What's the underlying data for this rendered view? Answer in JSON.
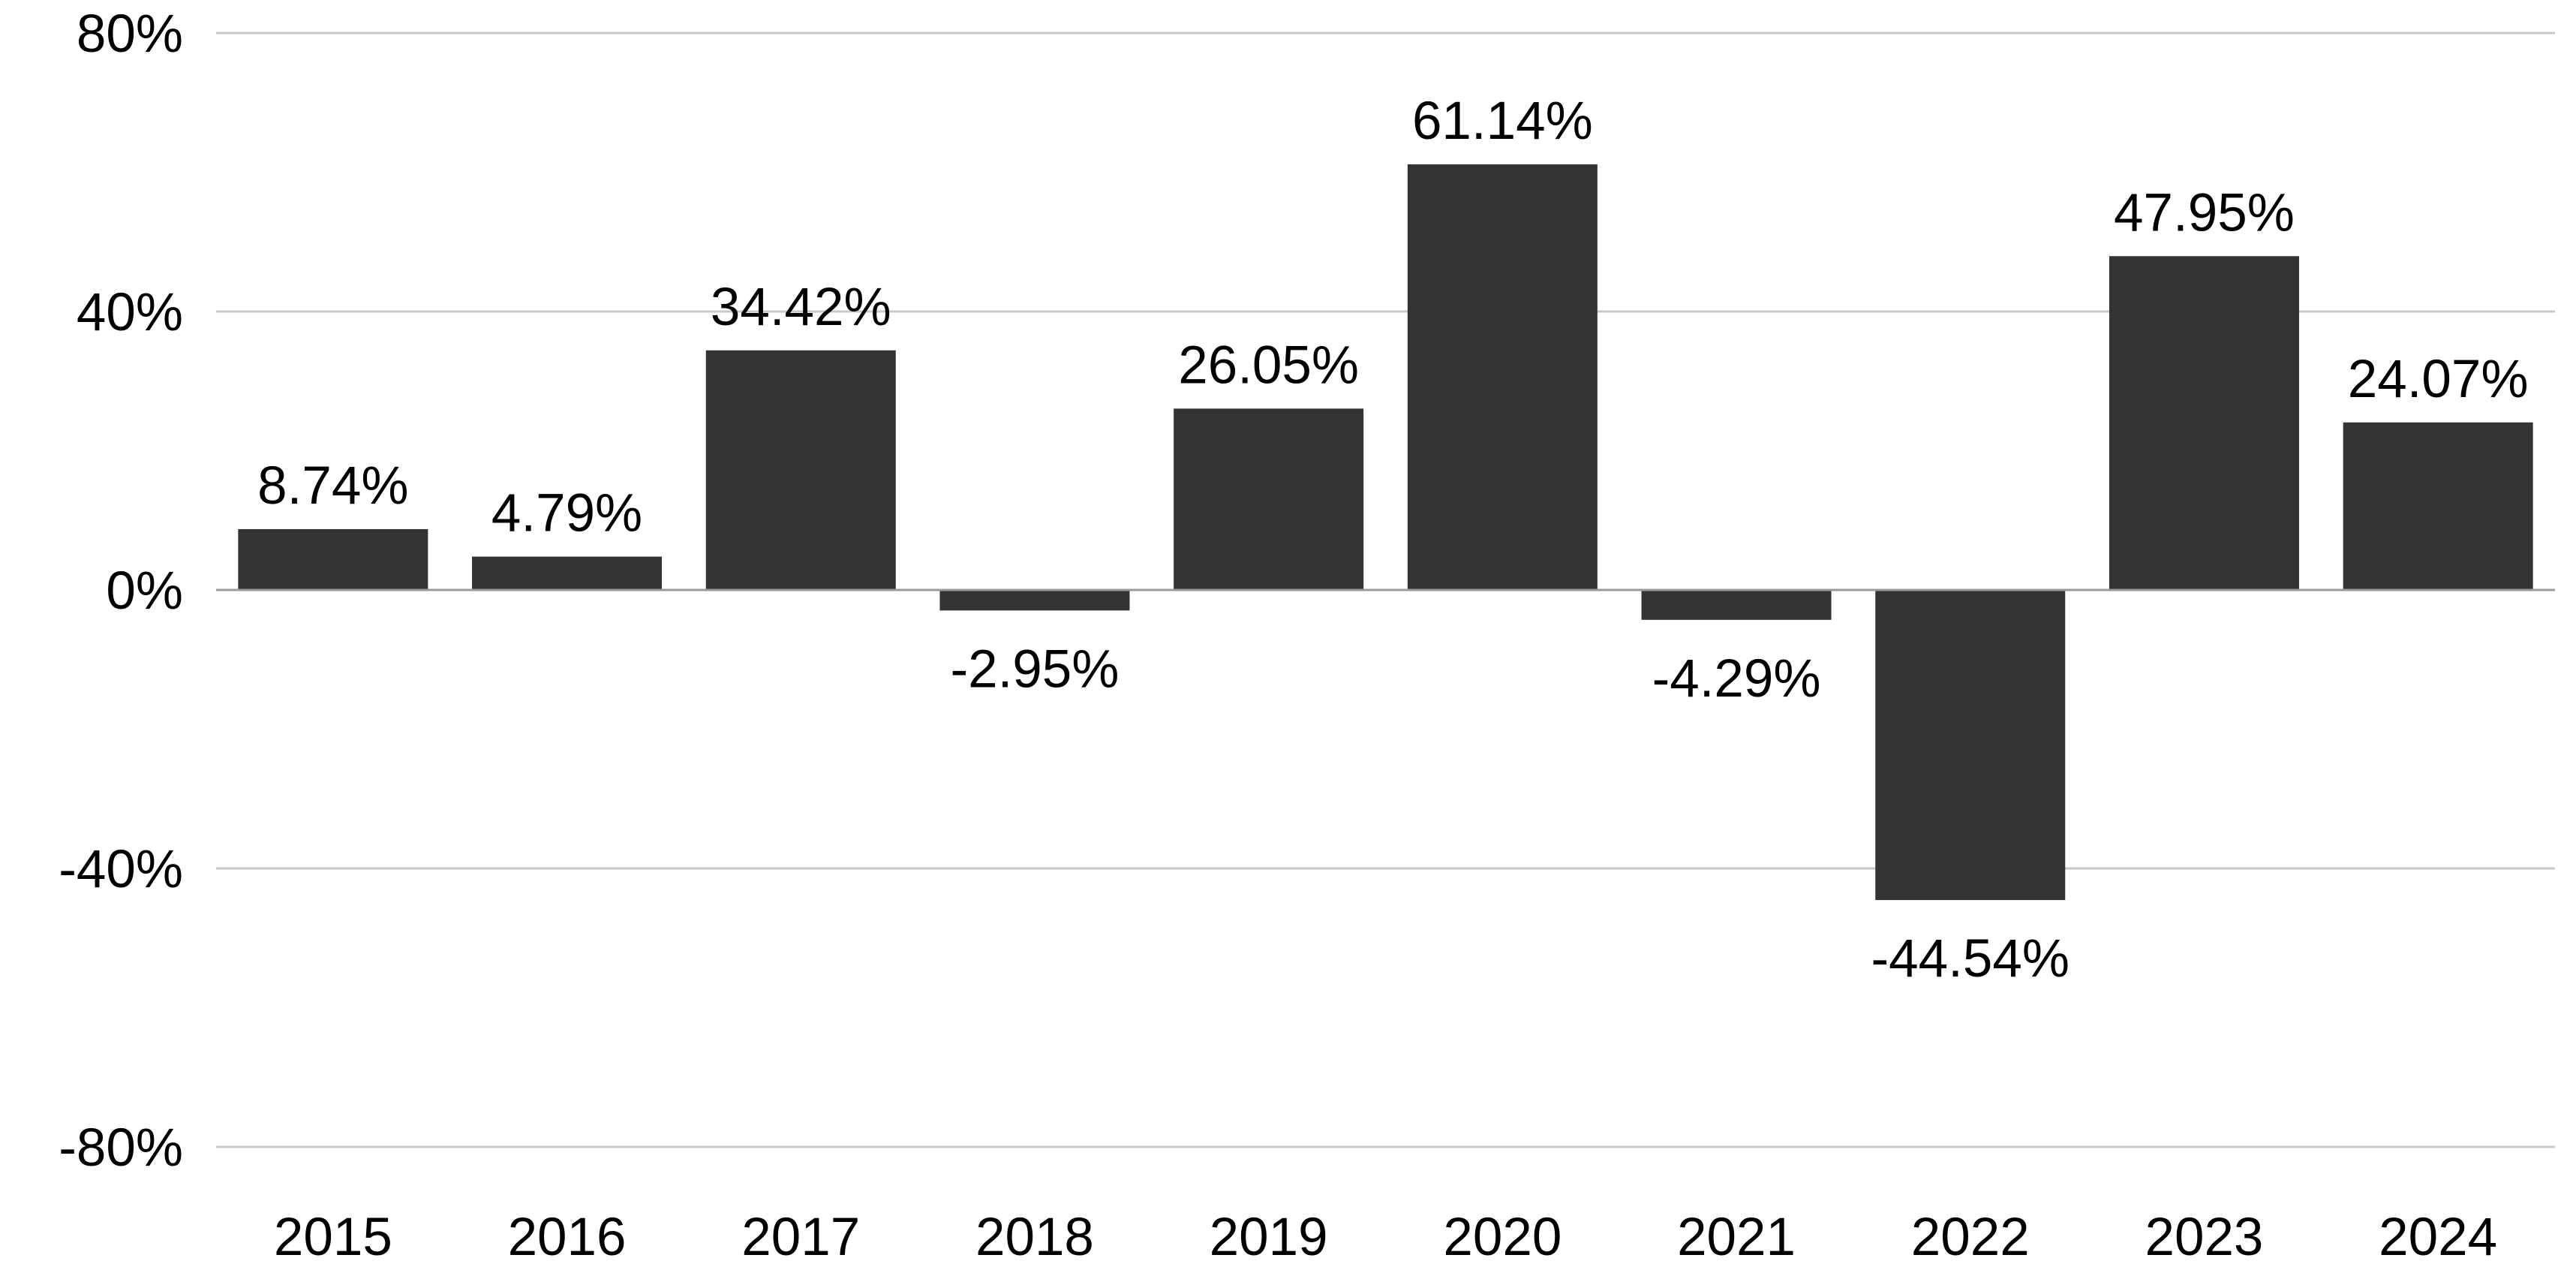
{
  "chart_data": {
    "type": "bar",
    "categories": [
      "2015",
      "2016",
      "2017",
      "2018",
      "2019",
      "2020",
      "2021",
      "2022",
      "2023",
      "2024"
    ],
    "values": [
      8.74,
      4.79,
      34.42,
      -2.95,
      26.05,
      61.14,
      -4.29,
      -44.54,
      47.95,
      24.07
    ],
    "value_labels": [
      "8.74%",
      "4.79%",
      "34.42%",
      "-2.95%",
      "26.05%",
      "61.14%",
      "-4.29%",
      "-44.54%",
      "47.95%",
      "24.07%"
    ],
    "ylim": [
      -80,
      80
    ],
    "yticks": [
      80,
      40,
      0,
      -40,
      -80
    ],
    "ytick_labels": [
      "80%",
      "40%",
      "0%",
      "-40%",
      "-80%"
    ],
    "grid": true,
    "bar_color": "#333333",
    "grid_color": "#c8c8c8",
    "title": "",
    "xlabel": "",
    "ylabel": ""
  }
}
